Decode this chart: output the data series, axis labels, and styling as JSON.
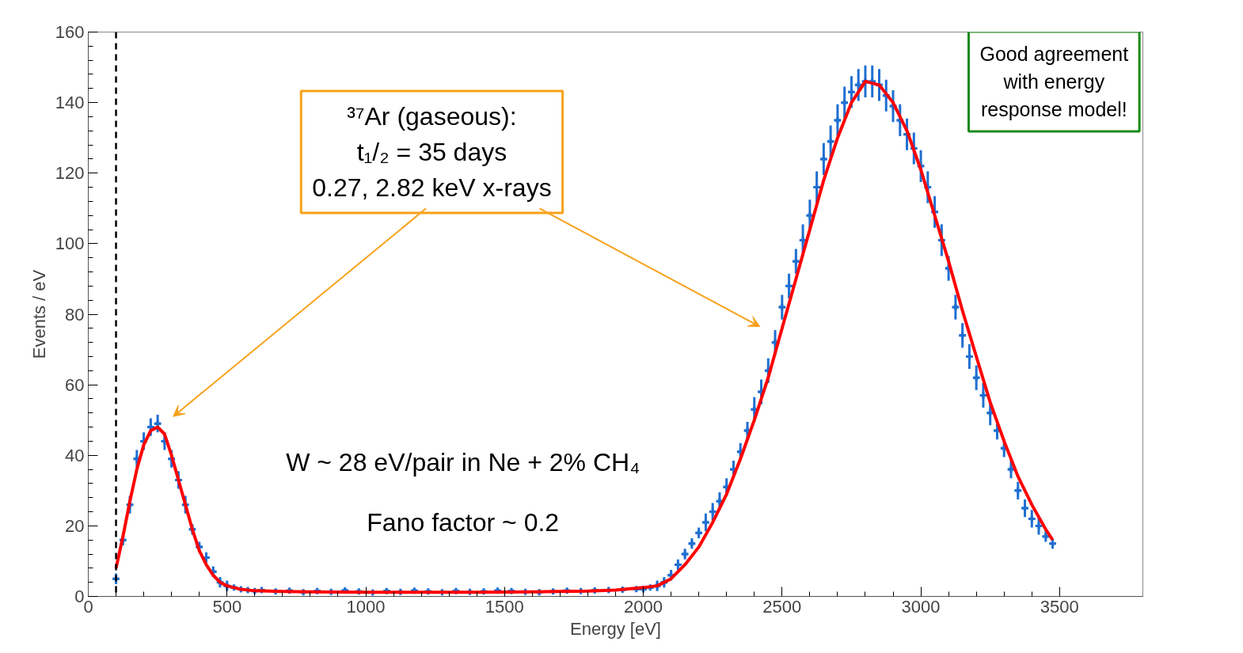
{
  "chart_data": {
    "type": "scatter",
    "xlabel": "Energy [eV]",
    "ylabel": "Events / eV",
    "xlim": [
      0,
      3800
    ],
    "ylim": [
      0,
      160
    ],
    "xticks": [
      0,
      500,
      1000,
      1500,
      2000,
      2500,
      3000,
      3500
    ],
    "yticks": [
      0,
      20,
      40,
      60,
      80,
      100,
      120,
      140,
      160
    ],
    "series": [
      {
        "marker": "cross",
        "color": "#1f6fd1",
        "x": [
          100,
          125,
          150,
          175,
          200,
          225,
          250,
          275,
          300,
          325,
          350,
          375,
          400,
          425,
          450,
          475,
          500,
          525,
          550,
          575,
          600,
          625,
          675,
          725,
          775,
          825,
          875,
          925,
          975,
          1025,
          1075,
          1125,
          1175,
          1225,
          1275,
          1325,
          1375,
          1425,
          1475,
          1525,
          1575,
          1625,
          1675,
          1725,
          1775,
          1825,
          1875,
          1925,
          1975,
          2000,
          2025,
          2050,
          2075,
          2100,
          2125,
          2150,
          2175,
          2200,
          2225,
          2250,
          2275,
          2300,
          2325,
          2350,
          2375,
          2400,
          2425,
          2450,
          2475,
          2500,
          2525,
          2550,
          2575,
          2600,
          2625,
          2650,
          2675,
          2700,
          2725,
          2750,
          2775,
          2800,
          2825,
          2850,
          2875,
          2900,
          2925,
          2950,
          2975,
          3000,
          3025,
          3050,
          3075,
          3100,
          3125,
          3150,
          3175,
          3200,
          3225,
          3250,
          3275,
          3300,
          3325,
          3350,
          3375,
          3400,
          3425,
          3450,
          3475
        ],
        "values": [
          5,
          16,
          26,
          39,
          44,
          48,
          49,
          44,
          39,
          33,
          26,
          19,
          14,
          11,
          7,
          4,
          3,
          2.5,
          2,
          1.8,
          1.5,
          1.8,
          1.4,
          1.6,
          1.2,
          1.5,
          1.3,
          1.7,
          1.4,
          1.1,
          1.5,
          1.3,
          1.6,
          1.4,
          1.2,
          1.5,
          1.3,
          1.4,
          1.6,
          1.5,
          1.3,
          1.2,
          1.4,
          1.6,
          1.5,
          1.7,
          1.8,
          1.9,
          2.1,
          2,
          2.5,
          3,
          4,
          6,
          9,
          12,
          15,
          18,
          21,
          24,
          27,
          31,
          36,
          41,
          47,
          53,
          58,
          64,
          72,
          82,
          88,
          95,
          101,
          108,
          116,
          124,
          129,
          135,
          140,
          143,
          145,
          146,
          146,
          145,
          142,
          139,
          135,
          131,
          127,
          122,
          116,
          109,
          101,
          93,
          82,
          74,
          68,
          62,
          57,
          52,
          47,
          42,
          36,
          30,
          25,
          22,
          20,
          17,
          15
        ],
        "errors": [
          1.5,
          1.5,
          2.5,
          2.5,
          2.5,
          2.5,
          2.5,
          2.5,
          2.5,
          2.5,
          2.5,
          1.5,
          1.5,
          1.5,
          1.5,
          1.5,
          1.5,
          0.6,
          0.6,
          0.6,
          0.6,
          0.6,
          0.6,
          0.6,
          0.6,
          0.6,
          0.6,
          0.6,
          0.6,
          0.6,
          0.6,
          0.6,
          0.6,
          0.6,
          0.6,
          0.6,
          0.6,
          0.6,
          0.6,
          0.6,
          0.6,
          0.6,
          0.6,
          0.6,
          0.6,
          0.6,
          0.6,
          0.6,
          0.6,
          0.6,
          0.6,
          1.5,
          1.5,
          1.5,
          1.5,
          1.5,
          1.5,
          1.5,
          2.5,
          2.5,
          2.5,
          2.5,
          2.5,
          2.5,
          2.5,
          3.5,
          3.5,
          3.5,
          3.5,
          3.5,
          3.5,
          3.5,
          4.5,
          4.5,
          4.5,
          4.5,
          4.5,
          4.5,
          4.5,
          4.5,
          4.5,
          4.5,
          4.5,
          4.5,
          4.5,
          4.5,
          4.5,
          4.5,
          4.5,
          4.5,
          4.5,
          4.5,
          4.5,
          3.5,
          3.5,
          3.5,
          3.5,
          3.5,
          3.5,
          3.5,
          2.5,
          2.5,
          2.5,
          2.5,
          2.5,
          2.5,
          2.5,
          1.5,
          1.5
        ],
        "xerrors": [
          12.5,
          12.5,
          12.5,
          12.5,
          12.5,
          12.5,
          12.5,
          12.5,
          12.5,
          12.5,
          12.5,
          12.5,
          12.5,
          12.5,
          12.5,
          12.5,
          12.5,
          12.5,
          12.5,
          12.5,
          12.5,
          12.5,
          12.5,
          12.5,
          12.5,
          12.5,
          12.5,
          12.5,
          12.5,
          12.5,
          12.5,
          12.5,
          12.5,
          12.5,
          12.5,
          12.5,
          12.5,
          12.5,
          12.5,
          12.5,
          12.5,
          12.5,
          12.5,
          12.5,
          12.5,
          12.5,
          12.5,
          12.5,
          12.5,
          12.5,
          12.5,
          12.5,
          12.5,
          12.5,
          12.5,
          12.5,
          12.5,
          12.5,
          12.5,
          12.5,
          12.5,
          12.5,
          12.5,
          12.5,
          12.5,
          12.5,
          12.5,
          12.5,
          12.5,
          12.5,
          12.5,
          12.5,
          12.5,
          12.5,
          12.5,
          12.5,
          12.5,
          12.5,
          12.5,
          12.5,
          12.5,
          12.5,
          12.5,
          12.5,
          12.5,
          12.5,
          12.5,
          12.5,
          12.5,
          12.5,
          12.5,
          12.5,
          12.5,
          12.5,
          12.5,
          12.5,
          12.5,
          12.5,
          12.5,
          12.5,
          12.5,
          12.5,
          12.5,
          12.5,
          12.5,
          12.5,
          12.5,
          12.5,
          12.5
        ]
      },
      {
        "type": "line",
        "color": "#ff0000",
        "x": [
          100,
          125,
          150,
          175,
          200,
          225,
          250,
          275,
          300,
          325,
          350,
          375,
          400,
          425,
          450,
          475,
          500,
          550,
          600,
          700,
          800,
          1000,
          1200,
          1400,
          1600,
          1800,
          1900,
          2000,
          2050,
          2100,
          2150,
          2200,
          2250,
          2300,
          2350,
          2400,
          2450,
          2500,
          2550,
          2600,
          2650,
          2700,
          2750,
          2800,
          2850,
          2900,
          2950,
          3000,
          3050,
          3100,
          3150,
          3200,
          3250,
          3300,
          3350,
          3400,
          3450,
          3475
        ],
        "values": [
          8,
          17,
          27,
          36,
          43,
          47,
          48,
          46,
          40,
          33,
          26,
          19,
          13,
          9,
          6,
          4,
          3,
          2,
          1.6,
          1.4,
          1.3,
          1.2,
          1.2,
          1.2,
          1.3,
          1.5,
          1.8,
          2.5,
          3,
          5,
          9,
          14,
          21,
          29,
          39,
          50,
          62,
          76,
          90,
          104,
          118,
          130,
          140,
          146,
          145,
          140,
          132,
          121,
          108,
          95,
          81,
          68,
          55,
          44,
          34,
          26,
          19,
          16
        ]
      }
    ],
    "ref_lines": [
      {
        "axis": "x",
        "value": 100,
        "color": "#000000",
        "line_style": "dashed"
      }
    ],
    "annotations": [
      "³⁷Ar (gaseous):\nt₁/₂ = 35 days\n0.27, 2.82 keV x-rays",
      "Good agreement\nwith energy\nresponse model!",
      "W ~ 28 eV/pair in Ne + 2% CH₄",
      "Fano factor ~ 0.2"
    ]
  }
}
